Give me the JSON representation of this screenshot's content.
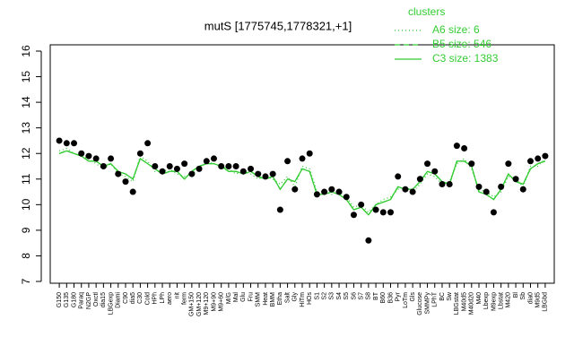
{
  "chart_data": {
    "type": "line",
    "title": "mutS [1775745,1778321,+1]",
    "legend_title": "clusters",
    "categories": [
      "G150",
      "G135",
      "G180",
      "Paraq",
      "N2GP",
      "Oxctl",
      "dia15",
      "LBGexp",
      "Diami",
      "C90",
      "dia5",
      "C30",
      "Cold",
      "HPh",
      "LPh",
      "aero",
      "nit",
      "ferm",
      "GM+150",
      "GM+120",
      "M9+120",
      "M9+90",
      "M9+60",
      "M/G",
      "Mal",
      "Glu",
      "Fru",
      "SMM",
      "Heat",
      "BMM",
      "Etha",
      "Salt",
      "Gly",
      "HiTm",
      "HOs",
      "S1",
      "S2",
      "S3",
      "S4",
      "S5",
      "S6",
      "S7",
      "S8",
      "BT",
      "B60",
      "B36",
      "Pyr",
      "LoTm",
      "Gls",
      "Glucose",
      "SMMPy",
      "LPhT",
      "BC",
      "Sw",
      "LBGstat",
      "M40d5",
      "M40d20",
      "M40",
      "Lbexp",
      "M9exp",
      "Lbstat",
      "M420",
      "Bl",
      "Sb",
      "dia0",
      "M9d5",
      "LBGbd"
    ],
    "values": [
      12.5,
      12.4,
      12.4,
      12.0,
      11.9,
      11.8,
      11.5,
      11.8,
      11.2,
      10.9,
      10.5,
      12.0,
      12.4,
      11.5,
      11.3,
      11.5,
      11.4,
      11.6,
      11.2,
      11.4,
      11.7,
      11.8,
      11.5,
      11.5,
      11.5,
      11.3,
      11.4,
      11.2,
      11.1,
      11.2,
      9.8,
      11.7,
      10.6,
      11.8,
      12.0,
      10.4,
      10.5,
      10.6,
      10.5,
      10.3,
      9.6,
      10.0,
      8.6,
      9.8,
      9.7,
      9.7,
      11.1,
      10.6,
      10.5,
      11.0,
      11.6,
      11.3,
      10.8,
      10.8,
      12.3,
      12.2,
      11.6,
      10.7,
      10.5,
      9.7,
      10.7,
      11.6,
      11.0,
      10.6,
      11.7,
      11.8,
      11.9
    ],
    "point_color": "#000000",
    "series": [
      {
        "name": "A6 size: 6",
        "color": "#33cc33",
        "dash": "dotted",
        "values": [
          12.1,
          12.2,
          12.0,
          11.9,
          11.8,
          11.6,
          11.4,
          11.6,
          11.2,
          11.1,
          10.9,
          11.9,
          11.7,
          11.3,
          11.3,
          11.4,
          11.2,
          11.1,
          11.2,
          11.4,
          11.7,
          11.6,
          11.5,
          11.4,
          11.2,
          11.3,
          11.2,
          11.0,
          11.1,
          11.0,
          10.8,
          11.1,
          10.7,
          11.5,
          11.4,
          10.5,
          10.5,
          10.4,
          10.5,
          10.3,
          9.9,
          10.0,
          9.7,
          10.0,
          10.2,
          10.3,
          10.6,
          10.7,
          10.5,
          10.8,
          11.2,
          11.1,
          10.8,
          10.9,
          11.6,
          11.8,
          11.4,
          10.6,
          10.5,
          10.3,
          10.5,
          11.1,
          11.0,
          10.7,
          11.5,
          11.5,
          11.8
        ]
      },
      {
        "name": "B5 size: 546",
        "color": "#33cc33",
        "dash": "dashed",
        "values": [
          12.0,
          12.1,
          12.0,
          11.9,
          11.7,
          11.7,
          11.5,
          11.6,
          11.3,
          11.2,
          11.0,
          11.8,
          11.6,
          11.4,
          11.2,
          11.3,
          11.3,
          11.0,
          11.3,
          11.5,
          11.6,
          11.6,
          11.5,
          11.3,
          11.3,
          11.2,
          11.3,
          11.1,
          11.0,
          11.1,
          10.6,
          11.0,
          10.9,
          11.4,
          11.3,
          10.4,
          10.4,
          10.5,
          10.4,
          10.2,
          9.8,
          9.9,
          9.6,
          10.0,
          10.1,
          10.2,
          10.7,
          10.6,
          10.6,
          10.9,
          11.3,
          11.2,
          10.9,
          10.8,
          11.7,
          11.7,
          11.5,
          10.5,
          10.4,
          10.2,
          10.6,
          11.2,
          10.9,
          10.8,
          11.4,
          11.6,
          11.7
        ]
      },
      {
        "name": "C3 size: 1383",
        "color": "#33cc33",
        "dash": "solid",
        "values": [
          12.0,
          12.1,
          12.0,
          11.9,
          11.7,
          11.7,
          11.5,
          11.6,
          11.3,
          11.2,
          11.0,
          11.8,
          11.6,
          11.4,
          11.2,
          11.3,
          11.3,
          11.0,
          11.3,
          11.5,
          11.6,
          11.6,
          11.5,
          11.3,
          11.3,
          11.2,
          11.3,
          11.1,
          11.0,
          11.1,
          10.6,
          11.0,
          10.9,
          11.4,
          11.3,
          10.4,
          10.4,
          10.5,
          10.4,
          10.2,
          9.8,
          9.9,
          9.6,
          10.0,
          10.1,
          10.2,
          10.7,
          10.6,
          10.6,
          10.9,
          11.3,
          11.2,
          10.9,
          10.8,
          11.7,
          11.7,
          11.5,
          10.5,
          10.4,
          10.2,
          10.6,
          11.2,
          10.9,
          10.8,
          11.4,
          11.6,
          11.7
        ]
      }
    ],
    "ylim": [
      7,
      16
    ],
    "yticks": [
      7,
      8,
      9,
      10,
      11,
      12,
      13,
      14,
      15,
      16
    ],
    "grid": false
  }
}
